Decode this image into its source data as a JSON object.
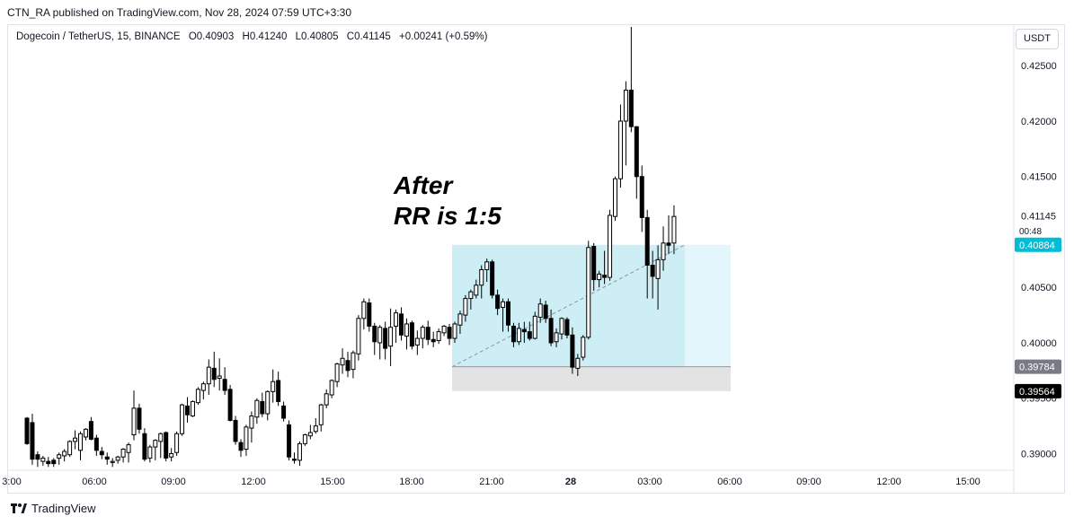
{
  "header": {
    "publish_line": "CTN_RA published on TradingView.com, Nov 28, 2024 07:59 UTC+3:30",
    "symbol": "Dogecoin / TetherUS, 15, BINANCE",
    "open": "O0.40903",
    "high": "H0.41240",
    "low": "L0.40805",
    "close": "C0.41145",
    "change": "+0.00241 (+0.59%)",
    "currency": "USDT"
  },
  "brand": {
    "name": "TradingView",
    "icon": "tradingview-logo-icon"
  },
  "annotation": {
    "line1": "After",
    "line2": "RR is 1:5"
  },
  "chart_data": {
    "type": "candlestick",
    "x_ticks": [
      "3:00",
      "06:00",
      "09:00",
      "12:00",
      "15:00",
      "18:00",
      "21:00",
      "28",
      "03:00",
      "06:00",
      "09:00",
      "12:00",
      "15:00"
    ],
    "y_ticks": [
      "0.42500",
      "0.42000",
      "0.41500",
      "0.41145",
      "0.40500",
      "0.40000",
      "0.39500",
      "0.39000"
    ],
    "y_range": [
      0.3885,
      0.4285
    ],
    "price_labels": [
      {
        "text": "0.40884",
        "value": 0.40884,
        "color": "#00bcd4",
        "sub": "00:48"
      },
      {
        "text": "0.39784",
        "value": 0.39784,
        "color": "#787b86"
      },
      {
        "text": "0.39564",
        "value": 0.39564,
        "color": "#000000"
      }
    ],
    "position": {
      "entry": 0.39784,
      "target": 0.40884,
      "stop": 0.39564,
      "profit_color": "#cdeef5",
      "profit_color_light": "#e3f6fb",
      "loss_color": "#e3e3e3"
    },
    "candles": [
      [
        0.3932,
        0.3933,
        0.3908,
        0.3909
      ],
      [
        0.3928,
        0.3936,
        0.389,
        0.3895
      ],
      [
        0.3899,
        0.3902,
        0.3888,
        0.3895
      ],
      [
        0.3893,
        0.3898,
        0.3889,
        0.3896
      ],
      [
        0.3893,
        0.3897,
        0.3888,
        0.3891
      ],
      [
        0.3894,
        0.3896,
        0.3888,
        0.3891
      ],
      [
        0.3896,
        0.3901,
        0.389,
        0.3899
      ],
      [
        0.3898,
        0.3904,
        0.3893,
        0.3902
      ],
      [
        0.3899,
        0.3912,
        0.3897,
        0.3911
      ],
      [
        0.3911,
        0.3921,
        0.3904,
        0.3914
      ],
      [
        0.3903,
        0.392,
        0.3894,
        0.3918
      ],
      [
        0.3915,
        0.3923,
        0.3912,
        0.3922
      ],
      [
        0.3929,
        0.3933,
        0.3912,
        0.3913
      ],
      [
        0.3914,
        0.3917,
        0.3898,
        0.3903
      ],
      [
        0.3902,
        0.3906,
        0.3895,
        0.3899
      ],
      [
        0.3897,
        0.3901,
        0.389,
        0.3895
      ],
      [
        0.3892,
        0.3896,
        0.3888,
        0.3893
      ],
      [
        0.3894,
        0.3898,
        0.3891,
        0.3897
      ],
      [
        0.3897,
        0.3905,
        0.3892,
        0.3904
      ],
      [
        0.3901,
        0.391,
        0.3892,
        0.3908
      ],
      [
        0.3917,
        0.3957,
        0.3912,
        0.3941
      ],
      [
        0.3941,
        0.3945,
        0.3918,
        0.3922
      ],
      [
        0.3918,
        0.3923,
        0.3893,
        0.3895
      ],
      [
        0.3896,
        0.3908,
        0.3892,
        0.3906
      ],
      [
        0.3906,
        0.3913,
        0.3894,
        0.3912
      ],
      [
        0.3911,
        0.3919,
        0.3896,
        0.3918
      ],
      [
        0.3919,
        0.392,
        0.3893,
        0.3896
      ],
      [
        0.3897,
        0.3905,
        0.3893,
        0.39
      ],
      [
        0.3901,
        0.392,
        0.3898,
        0.3918
      ],
      [
        0.3918,
        0.3945,
        0.3916,
        0.3944
      ],
      [
        0.3943,
        0.3951,
        0.3928,
        0.3935
      ],
      [
        0.3934,
        0.3948,
        0.3933,
        0.3947
      ],
      [
        0.3946,
        0.396,
        0.3944,
        0.3958
      ],
      [
        0.3957,
        0.3965,
        0.3949,
        0.3963
      ],
      [
        0.3963,
        0.3985,
        0.3953,
        0.3978
      ],
      [
        0.3977,
        0.3992,
        0.396,
        0.3967
      ],
      [
        0.3968,
        0.3986,
        0.3957,
        0.397
      ],
      [
        0.3967,
        0.3978,
        0.3953,
        0.3957
      ],
      [
        0.3958,
        0.3962,
        0.3929,
        0.393
      ],
      [
        0.393,
        0.3934,
        0.3908,
        0.3911
      ],
      [
        0.391,
        0.3913,
        0.3897,
        0.3903
      ],
      [
        0.3904,
        0.3926,
        0.3898,
        0.3924
      ],
      [
        0.3923,
        0.3938,
        0.391,
        0.3934
      ],
      [
        0.3933,
        0.395,
        0.3927,
        0.3948
      ],
      [
        0.3947,
        0.3955,
        0.3933,
        0.3936
      ],
      [
        0.3936,
        0.3957,
        0.393,
        0.3956
      ],
      [
        0.3956,
        0.3976,
        0.3946,
        0.3965
      ],
      [
        0.3966,
        0.3974,
        0.3943,
        0.3947
      ],
      [
        0.3943,
        0.3947,
        0.3929,
        0.3932
      ],
      [
        0.3926,
        0.393,
        0.3894,
        0.3897
      ],
      [
        0.3895,
        0.3901,
        0.3891,
        0.3894
      ],
      [
        0.3894,
        0.3911,
        0.3889,
        0.3909
      ],
      [
        0.3909,
        0.3918,
        0.3907,
        0.3917
      ],
      [
        0.3916,
        0.3926,
        0.3913,
        0.3919
      ],
      [
        0.392,
        0.3932,
        0.3918,
        0.3925
      ],
      [
        0.3926,
        0.3945,
        0.392,
        0.3944
      ],
      [
        0.3944,
        0.3958,
        0.3941,
        0.3954
      ],
      [
        0.3953,
        0.3967,
        0.395,
        0.3966
      ],
      [
        0.3965,
        0.3982,
        0.396,
        0.3981
      ],
      [
        0.398,
        0.3995,
        0.3972,
        0.3986
      ],
      [
        0.3984,
        0.3992,
        0.3969,
        0.3975
      ],
      [
        0.3976,
        0.3993,
        0.3968,
        0.3991
      ],
      [
        0.399,
        0.4025,
        0.3984,
        0.4022
      ],
      [
        0.4022,
        0.404,
        0.4012,
        0.4037
      ],
      [
        0.4036,
        0.404,
        0.401,
        0.4015
      ],
      [
        0.4015,
        0.4018,
        0.3989,
        0.4001
      ],
      [
        0.4,
        0.4016,
        0.3985,
        0.4014
      ],
      [
        0.4013,
        0.4019,
        0.3985,
        0.3995
      ],
      [
        0.3997,
        0.4031,
        0.3979,
        0.4014
      ],
      [
        0.4015,
        0.403,
        0.4,
        0.4027
      ],
      [
        0.4026,
        0.4032,
        0.4002,
        0.4007
      ],
      [
        0.4006,
        0.4022,
        0.3994,
        0.4017
      ],
      [
        0.4018,
        0.402,
        0.3994,
        0.3997
      ],
      [
        0.3998,
        0.4011,
        0.3989,
        0.4004
      ],
      [
        0.4004,
        0.4016,
        0.3995,
        0.4014
      ],
      [
        0.4014,
        0.402,
        0.3998,
        0.4003
      ],
      [
        0.4003,
        0.401,
        0.3996,
        0.4001
      ],
      [
        0.4002,
        0.4013,
        0.3999,
        0.401
      ],
      [
        0.4009,
        0.4016,
        0.4006,
        0.4015
      ],
      [
        0.4014,
        0.4017,
        0.3998,
        0.4004
      ],
      [
        0.4004,
        0.4019,
        0.4,
        0.4017
      ],
      [
        0.4016,
        0.4029,
        0.4008,
        0.4026
      ],
      [
        0.4025,
        0.4043,
        0.4019,
        0.404
      ],
      [
        0.404,
        0.4048,
        0.403,
        0.4046
      ],
      [
        0.4043,
        0.4057,
        0.404,
        0.4052
      ],
      [
        0.4052,
        0.407,
        0.404,
        0.4066
      ],
      [
        0.4066,
        0.4076,
        0.4055,
        0.4073
      ],
      [
        0.4073,
        0.4075,
        0.404,
        0.4043
      ],
      [
        0.4043,
        0.4048,
        0.4025,
        0.4031
      ],
      [
        0.4032,
        0.404,
        0.401,
        0.4037
      ],
      [
        0.4037,
        0.404,
        0.401,
        0.4016
      ],
      [
        0.4015,
        0.4018,
        0.3996,
        0.4001
      ],
      [
        0.4001,
        0.4018,
        0.3998,
        0.4013
      ],
      [
        0.4012,
        0.4019,
        0.4,
        0.401
      ],
      [
        0.401,
        0.4019,
        0.4002,
        0.4004
      ],
      [
        0.4004,
        0.4028,
        0.4003,
        0.4024
      ],
      [
        0.4023,
        0.404,
        0.4018,
        0.4035
      ],
      [
        0.4034,
        0.4038,
        0.4018,
        0.4022
      ],
      [
        0.4022,
        0.403,
        0.3997,
        0.4
      ],
      [
        0.4001,
        0.4013,
        0.3996,
        0.4009
      ],
      [
        0.4008,
        0.4023,
        0.4003,
        0.4022
      ],
      [
        0.4021,
        0.4023,
        0.4004,
        0.4007
      ],
      [
        0.4007,
        0.4014,
        0.3972,
        0.3978
      ],
      [
        0.3977,
        0.399,
        0.397,
        0.3986
      ],
      [
        0.3987,
        0.4007,
        0.3984,
        0.4005
      ],
      [
        0.4005,
        0.4092,
        0.4003,
        0.4086
      ],
      [
        0.4087,
        0.409,
        0.4047,
        0.4057
      ],
      [
        0.4057,
        0.4065,
        0.405,
        0.4062
      ],
      [
        0.4061,
        0.4083,
        0.4053,
        0.4059
      ],
      [
        0.4059,
        0.412,
        0.4056,
        0.4115
      ],
      [
        0.4114,
        0.415,
        0.411,
        0.4148
      ],
      [
        0.4148,
        0.4215,
        0.414,
        0.42
      ],
      [
        0.42,
        0.4236,
        0.416,
        0.4228
      ],
      [
        0.4228,
        0.4285,
        0.419,
        0.4195
      ],
      [
        0.4195,
        0.4195,
        0.413,
        0.415
      ],
      [
        0.415,
        0.416,
        0.41,
        0.4113
      ],
      [
        0.4113,
        0.412,
        0.404,
        0.407
      ],
      [
        0.407,
        0.4083,
        0.404,
        0.406
      ],
      [
        0.4058,
        0.4088,
        0.403,
        0.4075
      ],
      [
        0.4075,
        0.4105,
        0.4065,
        0.409
      ],
      [
        0.409,
        0.4115,
        0.408,
        0.4088
      ],
      [
        0.409,
        0.4124,
        0.408,
        0.4114
      ]
    ]
  }
}
